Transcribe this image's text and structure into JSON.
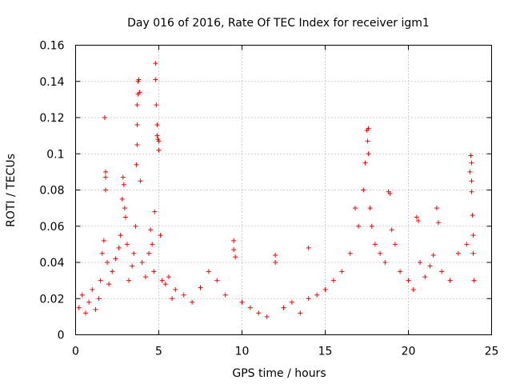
{
  "chart_data": {
    "type": "scatter",
    "title": "Day 016 of 2016, Rate Of TEC Index for receiver igm1",
    "xlabel": "GPS time / hours",
    "ylabel": "ROTI / TECUs",
    "xlim": [
      0,
      25
    ],
    "ylim": [
      0,
      0.16
    ],
    "xticks": [
      0,
      5,
      10,
      15,
      20,
      25
    ],
    "xtick_labels": [
      "0",
      "5",
      "10",
      "15",
      "20",
      "25"
    ],
    "yticks": [
      0,
      0.02,
      0.04,
      0.06,
      0.08,
      0.1,
      0.12,
      0.14,
      0.16
    ],
    "ytick_labels": [
      "0",
      "0.02",
      "0.04",
      "0.06",
      "0.08",
      "0.1",
      "0.12",
      "0.14",
      "0.16"
    ],
    "grid": true,
    "marker": "+",
    "color": "#ff0000",
    "series": [
      {
        "name": "ROTI",
        "points": [
          [
            0.2,
            0.015
          ],
          [
            0.4,
            0.022
          ],
          [
            0.6,
            0.012
          ],
          [
            0.8,
            0.018
          ],
          [
            1.0,
            0.025
          ],
          [
            1.2,
            0.014
          ],
          [
            1.4,
            0.02
          ],
          [
            1.5,
            0.03
          ],
          [
            1.6,
            0.045
          ],
          [
            1.7,
            0.052
          ],
          [
            1.75,
            0.12
          ],
          [
            1.8,
            0.09
          ],
          [
            1.8,
            0.087
          ],
          [
            1.8,
            0.08
          ],
          [
            1.9,
            0.04
          ],
          [
            2.0,
            0.028
          ],
          [
            2.2,
            0.035
          ],
          [
            2.4,
            0.042
          ],
          [
            2.6,
            0.048
          ],
          [
            2.7,
            0.055
          ],
          [
            2.8,
            0.075
          ],
          [
            2.85,
            0.087
          ],
          [
            2.9,
            0.083
          ],
          [
            2.95,
            0.07
          ],
          [
            3.0,
            0.065
          ],
          [
            3.1,
            0.05
          ],
          [
            3.2,
            0.03
          ],
          [
            3.4,
            0.038
          ],
          [
            3.5,
            0.045
          ],
          [
            3.6,
            0.06
          ],
          [
            3.65,
            0.094
          ],
          [
            3.7,
            0.105
          ],
          [
            3.7,
            0.116
          ],
          [
            3.7,
            0.127
          ],
          [
            3.75,
            0.133
          ],
          [
            3.75,
            0.14
          ],
          [
            3.8,
            0.141
          ],
          [
            3.85,
            0.134
          ],
          [
            3.9,
            0.085
          ],
          [
            4.0,
            0.04
          ],
          [
            4.2,
            0.032
          ],
          [
            4.4,
            0.045
          ],
          [
            4.5,
            0.058
          ],
          [
            4.6,
            0.05
          ],
          [
            4.7,
            0.035
          ],
          [
            4.75,
            0.068
          ],
          [
            4.8,
            0.15
          ],
          [
            4.8,
            0.141
          ],
          [
            4.85,
            0.127
          ],
          [
            4.9,
            0.116
          ],
          [
            4.9,
            0.11
          ],
          [
            4.95,
            0.108
          ],
          [
            5.0,
            0.107
          ],
          [
            5.0,
            0.102
          ],
          [
            5.1,
            0.055
          ],
          [
            5.2,
            0.03
          ],
          [
            5.4,
            0.028
          ],
          [
            5.6,
            0.032
          ],
          [
            5.8,
            0.02
          ],
          [
            6.0,
            0.025
          ],
          [
            6.5,
            0.022
          ],
          [
            7.0,
            0.018
          ],
          [
            7.5,
            0.026
          ],
          [
            8.0,
            0.035
          ],
          [
            8.5,
            0.03
          ],
          [
            9.0,
            0.022
          ],
          [
            9.5,
            0.052
          ],
          [
            9.5,
            0.047
          ],
          [
            9.6,
            0.043
          ],
          [
            10.0,
            0.018
          ],
          [
            10.5,
            0.015
          ],
          [
            11.0,
            0.012
          ],
          [
            11.5,
            0.01
          ],
          [
            12.0,
            0.044
          ],
          [
            12.0,
            0.04
          ],
          [
            12.5,
            0.015
          ],
          [
            13.0,
            0.018
          ],
          [
            13.5,
            0.012
          ],
          [
            14.0,
            0.048
          ],
          [
            14.0,
            0.02
          ],
          [
            14.5,
            0.022
          ],
          [
            15.0,
            0.025
          ],
          [
            15.5,
            0.03
          ],
          [
            16.0,
            0.035
          ],
          [
            16.5,
            0.045
          ],
          [
            16.8,
            0.07
          ],
          [
            17.0,
            0.06
          ],
          [
            17.3,
            0.08
          ],
          [
            17.4,
            0.095
          ],
          [
            17.5,
            0.113
          ],
          [
            17.55,
            0.107
          ],
          [
            17.6,
            0.114
          ],
          [
            17.6,
            0.1
          ],
          [
            17.7,
            0.07
          ],
          [
            17.8,
            0.06
          ],
          [
            18.0,
            0.05
          ],
          [
            18.3,
            0.045
          ],
          [
            18.6,
            0.04
          ],
          [
            18.8,
            0.079
          ],
          [
            18.9,
            0.078
          ],
          [
            19.0,
            0.058
          ],
          [
            19.2,
            0.05
          ],
          [
            19.5,
            0.035
          ],
          [
            20.0,
            0.03
          ],
          [
            20.3,
            0.025
          ],
          [
            20.5,
            0.065
          ],
          [
            20.6,
            0.063
          ],
          [
            20.7,
            0.04
          ],
          [
            21.0,
            0.032
          ],
          [
            21.3,
            0.038
          ],
          [
            21.5,
            0.044
          ],
          [
            21.7,
            0.07
          ],
          [
            21.8,
            0.062
          ],
          [
            22.0,
            0.035
          ],
          [
            22.5,
            0.03
          ],
          [
            23.0,
            0.045
          ],
          [
            23.5,
            0.05
          ],
          [
            23.7,
            0.09
          ],
          [
            23.75,
            0.099
          ],
          [
            23.8,
            0.095
          ],
          [
            23.8,
            0.085
          ],
          [
            23.8,
            0.079
          ],
          [
            23.85,
            0.066
          ],
          [
            23.9,
            0.055
          ],
          [
            23.9,
            0.045
          ],
          [
            23.95,
            0.03
          ]
        ]
      }
    ]
  }
}
